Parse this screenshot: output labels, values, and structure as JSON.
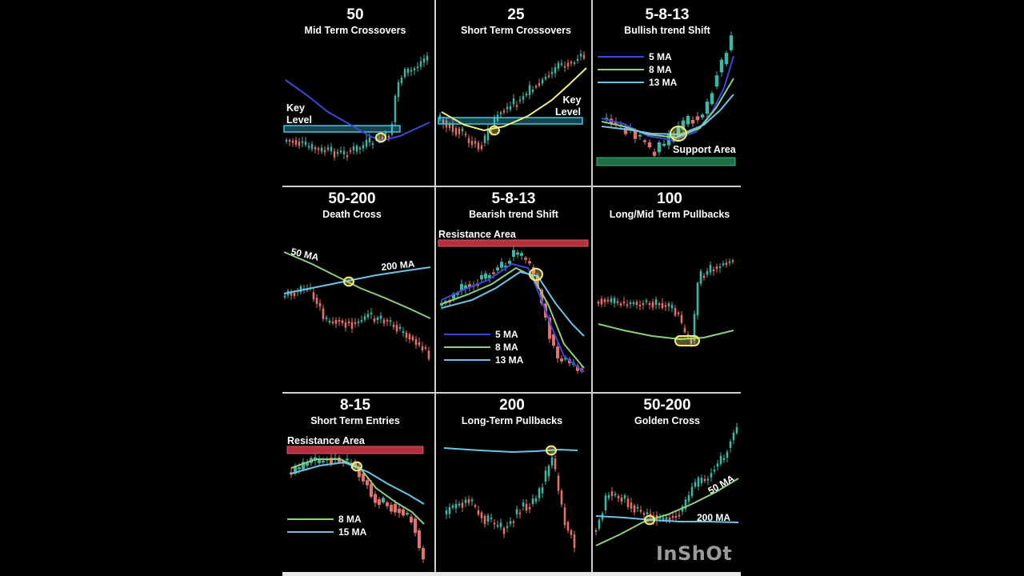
{
  "watermark": "InShOt",
  "colors": {
    "bull": "#3fb5a4",
    "bear": "#e2706b",
    "blue": "#3d46d8",
    "green": "#8ccf7e",
    "lightblue": "#6ec3e6",
    "yellow": "#f1ec7c",
    "cyan": "#43c7dd",
    "resistance": "#b3303c",
    "support": "#1f6e48"
  },
  "chart_data": [
    {
      "id": "p1",
      "type": "candlestick",
      "title": "50",
      "subtitle": "Mid Term Crossovers",
      "ma": [
        {
          "period": "50",
          "color": "blue"
        }
      ],
      "annotations": [
        "Key",
        "Level"
      ],
      "zone": "key-level"
    },
    {
      "id": "p2",
      "type": "candlestick",
      "title": "25",
      "subtitle": "Short Term Crossovers",
      "ma": [
        {
          "period": "25",
          "color": "yellow"
        }
      ],
      "annotations": [
        "Key",
        "Level"
      ],
      "zone": "key-level"
    },
    {
      "id": "p3",
      "type": "candlestick",
      "title": "5-8-13",
      "subtitle": "Bullish trend Shift",
      "legend": [
        "5 MA",
        "8 MA",
        "13 MA"
      ],
      "annotations": [
        "Support Area"
      ],
      "zone": "support"
    },
    {
      "id": "p4",
      "type": "candlestick",
      "title": "50-200",
      "subtitle": "Death Cross",
      "labels": [
        "50 MA",
        "200 MA"
      ]
    },
    {
      "id": "p5",
      "type": "candlestick",
      "title": "5-8-13",
      "subtitle": "Bearish trend Shift",
      "legend": [
        "5 MA",
        "8 MA",
        "13 MA"
      ],
      "annotations": [
        "Resistance Area"
      ],
      "zone": "resistance"
    },
    {
      "id": "p6",
      "type": "candlestick",
      "title": "100",
      "subtitle": "Long/Mid Term Pullbacks",
      "ma": [
        {
          "period": "100",
          "color": "green"
        }
      ]
    },
    {
      "id": "p7",
      "type": "candlestick",
      "title": "8-15",
      "subtitle": "Short Term Entries",
      "legend": [
        "8 MA",
        "15 MA"
      ],
      "annotations": [
        "Resistance Area"
      ],
      "zone": "resistance"
    },
    {
      "id": "p8",
      "type": "candlestick",
      "title": "200",
      "subtitle": "Long-Term Pullbacks",
      "ma": [
        {
          "period": "200",
          "color": "lightblue"
        }
      ]
    },
    {
      "id": "p9",
      "type": "candlestick",
      "title": "50-200",
      "subtitle": "Golden Cross",
      "labels": [
        "50 MA",
        "200 MA"
      ]
    }
  ]
}
